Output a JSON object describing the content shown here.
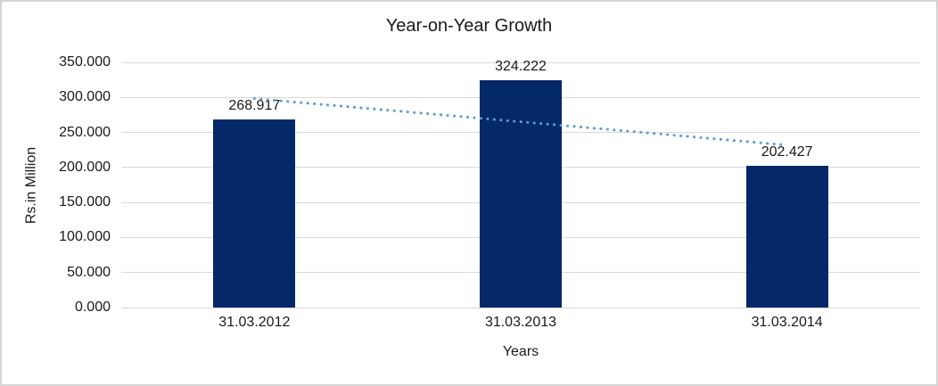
{
  "chart_data": {
    "type": "bar",
    "title": "Year-on-Year Growth",
    "xlabel": "Years",
    "ylabel": "Rs.in Million",
    "categories": [
      "31.03.2012",
      "31.03.2013",
      "31.03.2014"
    ],
    "values": [
      268.917,
      324.222,
      202.427
    ],
    "value_labels": [
      "268.917",
      "324.222",
      "202.427"
    ],
    "ylim": [
      0,
      350
    ],
    "ytick_step": 50,
    "ytick_labels": [
      "0.000",
      "50.000",
      "100.000",
      "150.000",
      "200.000",
      "250.000",
      "300.000",
      "350.000"
    ],
    "grid": true,
    "legend": "none",
    "trendline": {
      "type": "linear",
      "style": "dotted",
      "color": "#5B9BD5",
      "values_at_categories": [
        298.4,
        265.2,
        231.9
      ]
    },
    "colors": {
      "bar": "#052869",
      "gridline": "#D9D9D9",
      "text": "#1A1A1A",
      "frame_border": "#D4D4D4",
      "background": "#FFFFFF"
    }
  }
}
